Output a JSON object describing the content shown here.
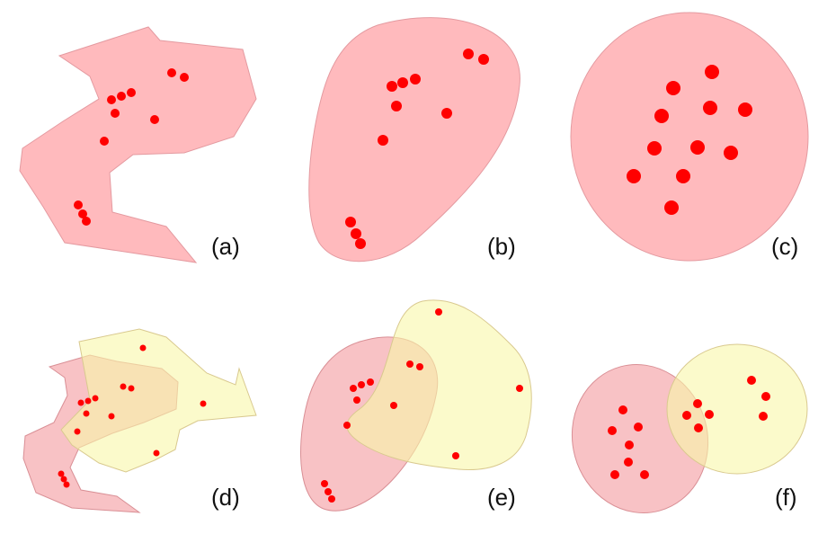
{
  "panels": {
    "a": {
      "label": "(a)"
    },
    "b": {
      "label": "(b)"
    },
    "c": {
      "label": "(c)"
    },
    "d": {
      "label": "(d)"
    },
    "e": {
      "label": "(e)"
    },
    "f": {
      "label": "(f)"
    }
  },
  "colors": {
    "region_red": "#ffb3b6",
    "region_yellow": "#f8f6a8",
    "point": "#ff0000"
  }
}
